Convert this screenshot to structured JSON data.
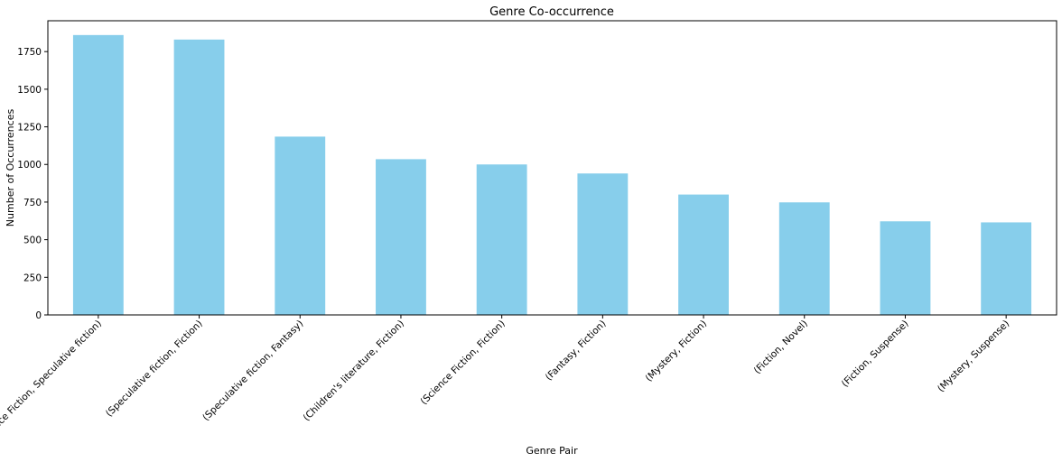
{
  "chart_data": {
    "type": "bar",
    "title": "Genre Co-occurrence",
    "xlabel": "Genre Pair",
    "ylabel": "Number of Occurrences",
    "categories": [
      "(Science Fiction, Speculative fiction)",
      "(Speculative fiction, Fiction)",
      "(Speculative fiction, Fantasy)",
      "(Children's literature, Fiction)",
      "(Science Fiction, Fiction)",
      "(Fantasy, Fiction)",
      "(Mystery, Fiction)",
      "(Fiction, Novel)",
      "(Fiction, Suspense)",
      "(Mystery, Suspense)"
    ],
    "values": [
      1860,
      1830,
      1185,
      1035,
      1000,
      940,
      800,
      748,
      622,
      615
    ],
    "ylim": [
      0,
      1955
    ],
    "yticks": [
      0,
      250,
      500,
      750,
      1000,
      1250,
      1500,
      1750
    ],
    "grid": false,
    "bar_color": "#87ceeb"
  }
}
